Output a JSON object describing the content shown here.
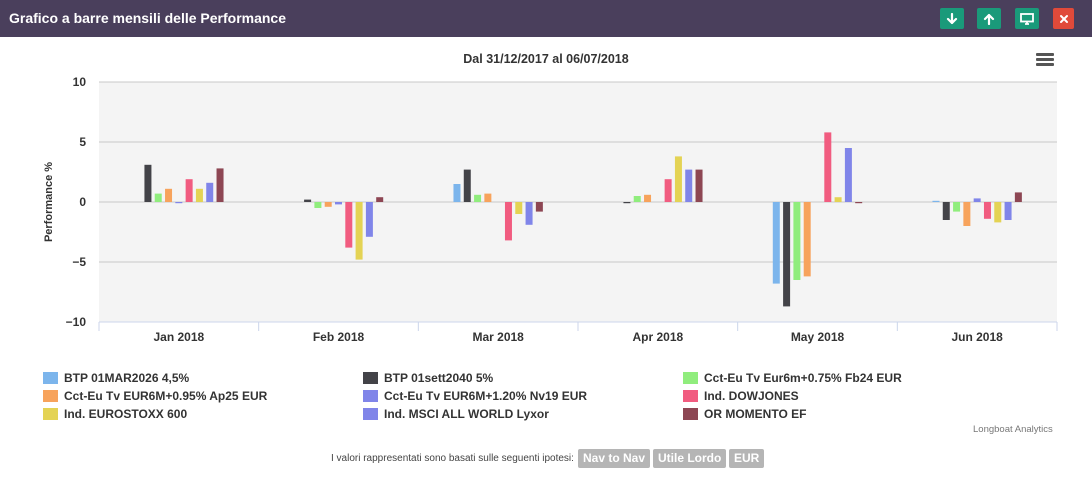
{
  "window": {
    "title": "Grafico a barre mensili delle Performance",
    "buttons": [
      {
        "name": "download-button",
        "icon": "arrow-down-icon",
        "color": "#1a9a7a"
      },
      {
        "name": "upload-button",
        "icon": "arrow-up-icon",
        "color": "#1a9a7a"
      },
      {
        "name": "fullscreen-button",
        "icon": "monitor-icon",
        "color": "#1a9a7a"
      },
      {
        "name": "close-button",
        "icon": "close-icon",
        "color": "#e04a3a"
      }
    ]
  },
  "chart_data": {
    "type": "bar",
    "title": "Dal 31/12/2017 al 06/07/2018",
    "ylabel": "Performance %",
    "xlabel": "",
    "ylim": [
      -10,
      10
    ],
    "yticks": [
      10,
      5,
      0,
      -5,
      -10
    ],
    "grid": true,
    "legend_position": "bottom",
    "categories": [
      "Jan 2018",
      "Feb 2018",
      "Mar 2018",
      "Apr 2018",
      "May 2018",
      "Jun 2018"
    ],
    "series": [
      {
        "name": "BTP 01MAR2026 4,5%",
        "color": "#7cb5ec",
        "values": [
          0.0,
          0.0,
          1.5,
          0.0,
          -6.8,
          0.1
        ]
      },
      {
        "name": "BTP 01sett2040 5%",
        "color": "#434348",
        "values": [
          3.1,
          0.2,
          2.7,
          -0.1,
          -8.7,
          -1.5
        ]
      },
      {
        "name": "Cct-Eu Tv Eur6m+0.75% Fb24 EUR",
        "color": "#90ed7d",
        "values": [
          0.7,
          -0.5,
          0.6,
          0.5,
          -6.5,
          -0.8
        ]
      },
      {
        "name": "Cct-Eu Tv EUR6M+0.95% Ap25 EUR",
        "color": "#f7a35c",
        "values": [
          1.1,
          -0.4,
          0.7,
          0.6,
          -6.2,
          -2.0
        ]
      },
      {
        "name": "Cct-Eu Tv EUR6M+1.20% Nv19 EUR",
        "color": "#8085e9",
        "values": [
          -0.1,
          -0.2,
          0.0,
          0.0,
          0.0,
          0.3
        ]
      },
      {
        "name": "Ind. DOWJONES",
        "color": "#f15c80",
        "values": [
          1.9,
          -3.8,
          -3.2,
          1.9,
          5.8,
          -1.4
        ]
      },
      {
        "name": "Ind. EUROSTOXX 600",
        "color": "#e4d354",
        "values": [
          1.1,
          -4.8,
          -1.0,
          3.8,
          0.4,
          -1.7
        ]
      },
      {
        "name": "Ind. MSCI ALL WORLD Lyxor",
        "color": "#8085e9",
        "values": [
          1.6,
          -2.9,
          -1.9,
          2.7,
          4.5,
          -1.5
        ]
      },
      {
        "name": "OR MOMENTO EF",
        "color": "#8d4653",
        "values": [
          2.8,
          0.4,
          -0.8,
          2.7,
          -0.1,
          0.8
        ]
      }
    ]
  },
  "credits": "Longboat Analytics",
  "footer": {
    "note": "I valori rappresentati sono basati sulle seguenti ipotesi:",
    "chips": [
      "Nav to Nav",
      "Utile Lordo",
      "EUR"
    ]
  }
}
